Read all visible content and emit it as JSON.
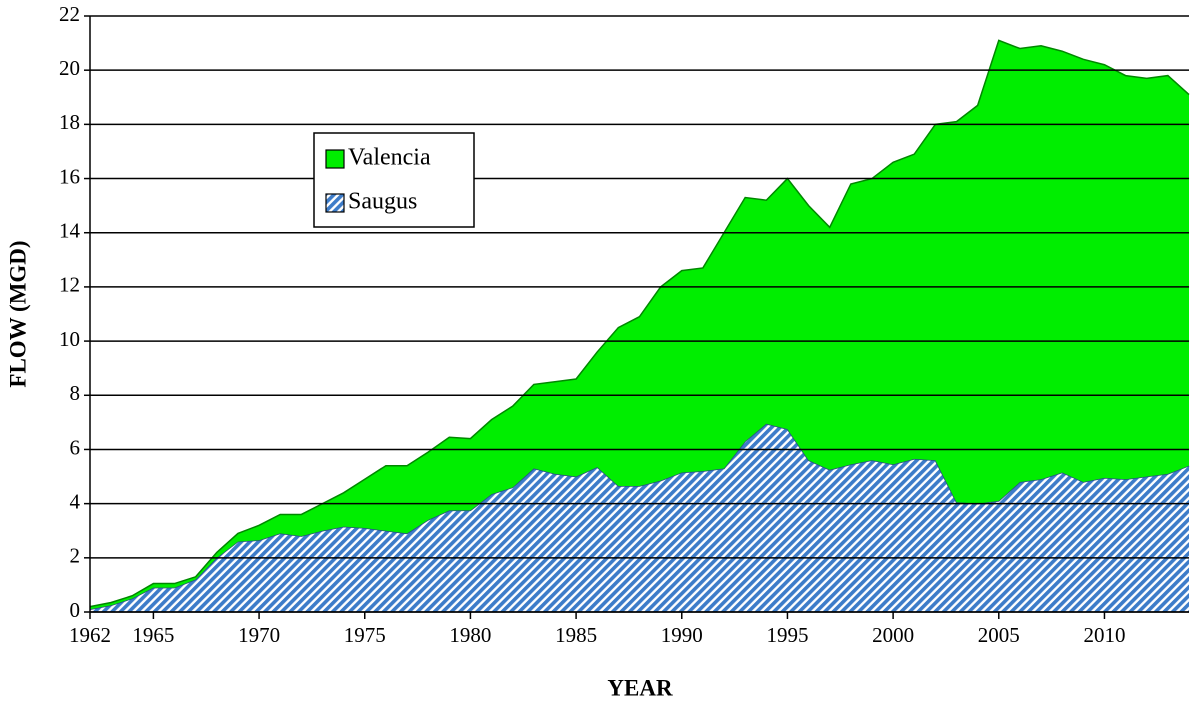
{
  "chart_data": {
    "type": "stacked_area",
    "x": [
      1962,
      1963,
      1964,
      1965,
      1966,
      1967,
      1968,
      1969,
      1970,
      1971,
      1972,
      1973,
      1974,
      1975,
      1976,
      1977,
      1978,
      1979,
      1980,
      1981,
      1982,
      1983,
      1984,
      1985,
      1986,
      1987,
      1988,
      1989,
      1990,
      1991,
      1992,
      1993,
      1994,
      1995,
      1996,
      1997,
      1998,
      1999,
      2000,
      2001,
      2002,
      2003,
      2004,
      2005,
      2006,
      2007,
      2008,
      2009,
      2010,
      2011,
      2012,
      2013,
      2014
    ],
    "series": [
      {
        "name": "Saugus",
        "color": "#3d7cc9",
        "values": [
          0.1,
          0.25,
          0.5,
          0.9,
          0.9,
          1.2,
          2.0,
          2.6,
          2.65,
          2.9,
          2.8,
          3.0,
          3.15,
          3.1,
          3.0,
          2.9,
          3.4,
          3.75,
          3.75,
          4.35,
          4.6,
          5.3,
          5.1,
          5.0,
          5.35,
          4.65,
          4.65,
          4.85,
          5.15,
          5.2,
          5.3,
          6.3,
          6.95,
          6.75,
          5.6,
          5.25,
          5.45,
          5.6,
          5.45,
          5.65,
          5.6,
          4.05,
          4.0,
          4.1,
          4.8,
          4.9,
          5.15,
          4.8,
          4.95,
          4.9,
          5.0,
          5.1,
          5.4
        ]
      },
      {
        "name": "Valencia",
        "color": "#00ee00",
        "values": [
          0.1,
          0.1,
          0.1,
          0.15,
          0.15,
          0.1,
          0.2,
          0.3,
          0.55,
          0.7,
          0.8,
          1.0,
          1.25,
          1.8,
          2.4,
          2.5,
          2.5,
          2.7,
          2.65,
          2.75,
          3.0,
          3.1,
          3.4,
          3.6,
          4.25,
          5.85,
          6.25,
          7.15,
          7.45,
          7.5,
          8.7,
          9.0,
          8.25,
          9.25,
          9.4,
          8.95,
          10.35,
          10.4,
          11.15,
          11.25,
          12.4,
          14.05,
          14.7,
          17.0,
          16.0,
          16.0,
          15.55,
          15.6,
          15.25,
          14.9,
          14.7,
          14.7,
          13.7
        ]
      }
    ],
    "xlabel": "YEAR",
    "ylabel": "FLOW (MGD)",
    "xlim": [
      1962,
      2014
    ],
    "xticks": [
      1962,
      1965,
      1970,
      1975,
      1980,
      1985,
      1990,
      1995,
      2000,
      2005,
      2010
    ],
    "ylim": [
      0,
      22
    ],
    "yticks": [
      0,
      2,
      4,
      6,
      8,
      10,
      12,
      14,
      16,
      18,
      20,
      22
    ],
    "grid": true
  }
}
